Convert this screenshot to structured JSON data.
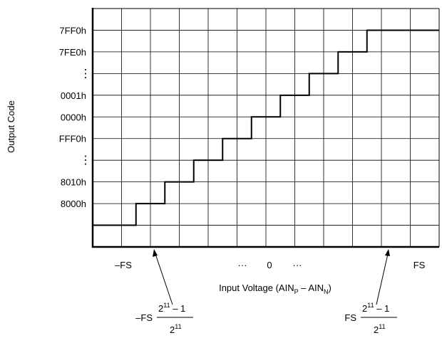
{
  "chart_data": {
    "type": "line",
    "title": "",
    "xlabel": "Input Voltage (AIN",
    "xlabel_sub_p": "P",
    "xlabel_mid": " – AIN",
    "xlabel_sub_n": "N",
    "xlabel_close": ")",
    "ylabel": "Output Code",
    "grid": true,
    "legend": "none",
    "y_tick_labels": [
      "7FF0h",
      "7FE0h",
      "⋮",
      "0001h",
      "0000h",
      "FFF0h",
      "⋮",
      "8010h",
      "8000h"
    ],
    "x_tick_labels": {
      "neg_fs": "–FS",
      "dots_left": "···",
      "zero": "0",
      "dots_right": "···",
      "fs": "FS"
    },
    "annotations": {
      "left": {
        "prefix": "–FS",
        "num_base": "2",
        "num_exp": "11",
        "num_rest": " – 1",
        "den_base": "2",
        "den_exp": "11"
      },
      "right": {
        "prefix": "FS",
        "num_base": "2",
        "num_exp": "11",
        "num_rest": " – 1",
        "den_base": "2",
        "den_exp": "11"
      }
    },
    "grid_columns": 12,
    "grid_rows": 11,
    "series": [
      {
        "values": [
          {
            "x": 0,
            "y": 1
          },
          {
            "x": 1.5,
            "y": 1
          },
          {
            "x": 1.5,
            "y": 2
          },
          {
            "x": 2.5,
            "y": 2
          },
          {
            "x": 2.5,
            "y": 3
          },
          {
            "x": 3.5,
            "y": 3
          },
          {
            "x": 3.5,
            "y": 4
          },
          {
            "x": 4.5,
            "y": 4
          },
          {
            "x": 4.5,
            "y": 5
          },
          {
            "x": 5.5,
            "y": 5
          },
          {
            "x": 5.5,
            "y": 6
          },
          {
            "x": 6.5,
            "y": 6
          },
          {
            "x": 6.5,
            "y": 7
          },
          {
            "x": 7.5,
            "y": 7
          },
          {
            "x": 7.5,
            "y": 8
          },
          {
            "x": 8.5,
            "y": 8
          },
          {
            "x": 8.5,
            "y": 9
          },
          {
            "x": 9.5,
            "y": 9
          },
          {
            "x": 9.5,
            "y": 10
          },
          {
            "x": 12,
            "y": 10
          }
        ]
      }
    ]
  }
}
